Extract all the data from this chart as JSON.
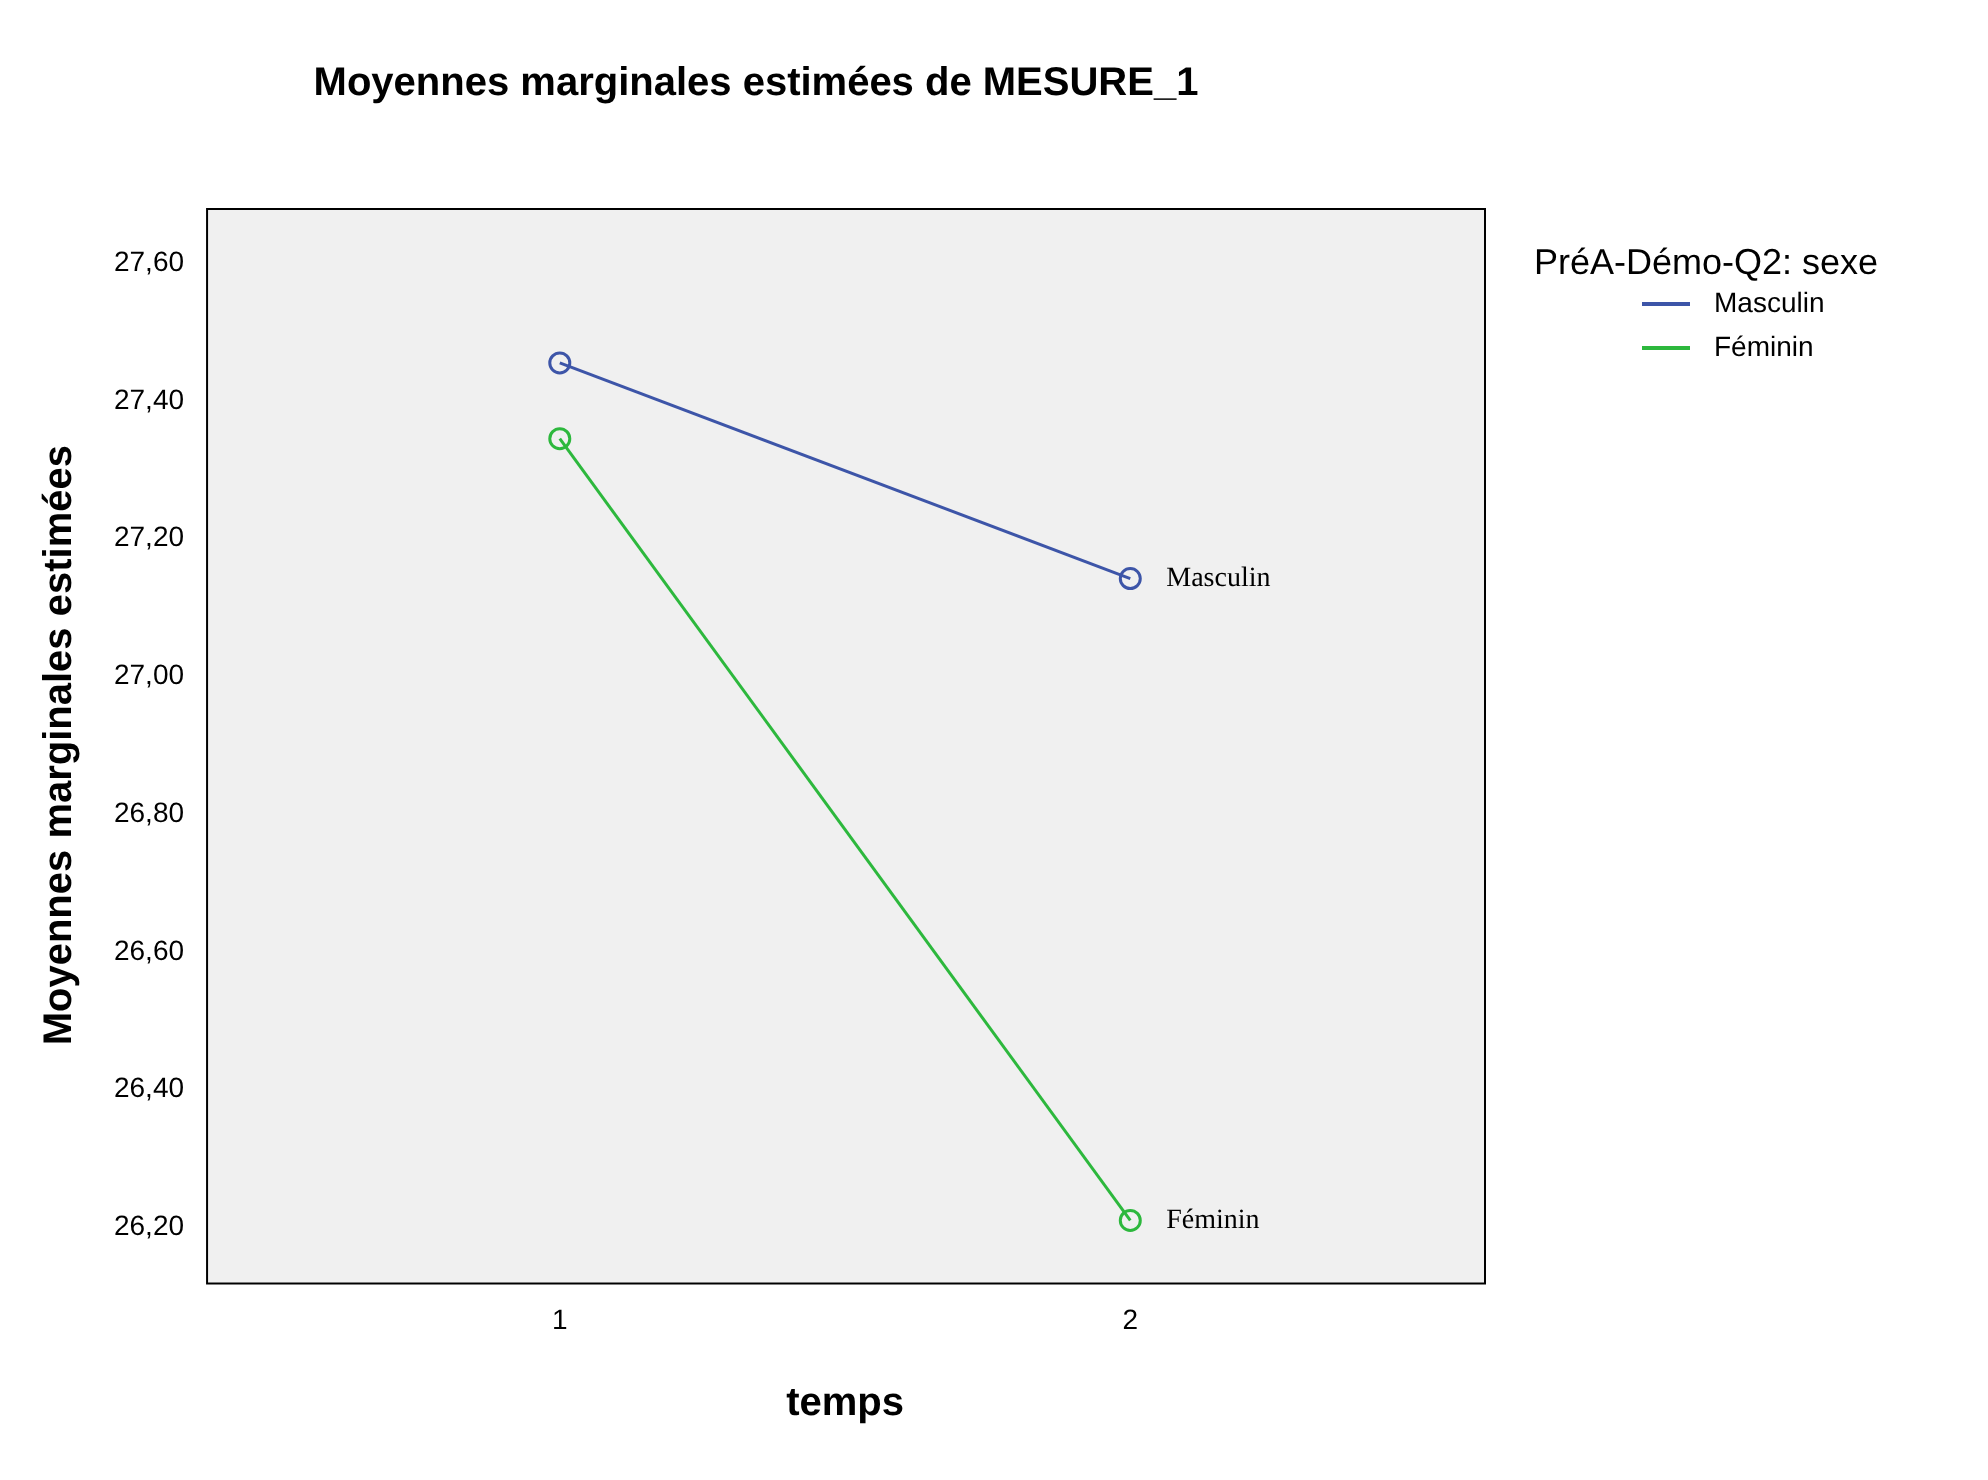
{
  "chart_data": {
    "type": "line",
    "title": "Moyennes marginales estimées de MESURE_1",
    "xlabel": "temps",
    "ylabel": "Moyennes marginales estimées",
    "legend_title": "PréA-Démo-Q2: sexe",
    "x": [
      1,
      2
    ],
    "xlim": [
      0.38,
      2.62
    ],
    "xticks": [
      1,
      2
    ],
    "ylim": [
      26.12,
      27.68
    ],
    "yticks": [
      {
        "value": 26.2,
        "label": "26,20"
      },
      {
        "value": 26.4,
        "label": "26,40"
      },
      {
        "value": 26.6,
        "label": "26,60"
      },
      {
        "value": 26.8,
        "label": "26,80"
      },
      {
        "value": 27.0,
        "label": "27,00"
      },
      {
        "value": 27.2,
        "label": "27,20"
      },
      {
        "value": 27.4,
        "label": "27,40"
      },
      {
        "value": 27.6,
        "label": "27,60"
      }
    ],
    "grid": false,
    "legend": "top right",
    "marker": "circle",
    "line_style": "solid",
    "series": [
      {
        "name": "Masculin",
        "color": "#3d55a8",
        "values": [
          27.455,
          27.142
        ]
      },
      {
        "name": "Féminin",
        "color": "#2db83d",
        "values": [
          27.345,
          26.21
        ]
      }
    ]
  }
}
